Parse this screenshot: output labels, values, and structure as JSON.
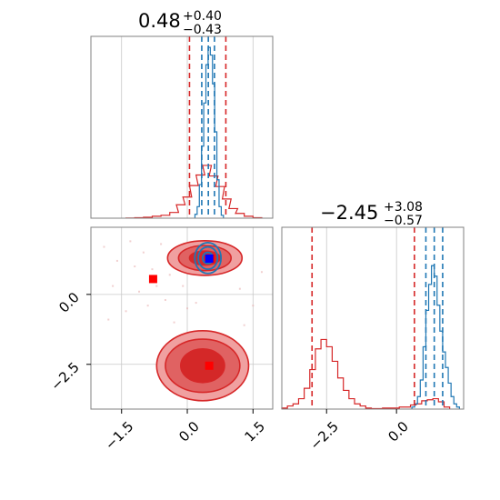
{
  "colors": {
    "red": "#d62728",
    "blue": "#1f77b4",
    "red_fill_light": "#f0a0a0",
    "red_fill_mid": "#e06262",
    "red_fill_dark": "#d42828",
    "point_red": "#ff0000",
    "point_blue": "#0000ff",
    "grid": "#c8c8c8",
    "frame": "#808080"
  },
  "chart_data": [
    {
      "type": "histogram",
      "panel": "marginal-x",
      "title": {
        "value": "0.48",
        "plus": "+0.40",
        "minus": "−0.43"
      },
      "xlim": [
        -2.2,
        1.95
      ],
      "grid": true,
      "quantile_lines": {
        "red": [
          0.05,
          0.88
        ],
        "blue": [
          0.33,
          0.48,
          0.62
        ]
      },
      "series": [
        {
          "color": "red",
          "x": [
            -1.3,
            -1.1,
            -0.9,
            -0.7,
            -0.5,
            -0.3,
            -0.15,
            0.0,
            0.15,
            0.3,
            0.45,
            0.6,
            0.75,
            0.9,
            1.05,
            1.2,
            1.4,
            1.6
          ],
          "y": [
            0.2,
            0.5,
            1,
            2,
            3,
            6,
            14,
            22,
            34,
            45,
            55,
            44,
            33,
            20,
            10,
            5,
            2,
            0.5
          ]
        },
        {
          "color": "blue",
          "x": [
            0.2,
            0.25,
            0.3,
            0.35,
            0.4,
            0.45,
            0.5,
            0.55,
            0.6,
            0.65,
            0.7,
            0.75,
            0.8
          ],
          "y": [
            4,
            12,
            35,
            75,
            120,
            160,
            178,
            170,
            140,
            90,
            40,
            12,
            3
          ]
        }
      ]
    },
    {
      "type": "scatter",
      "panel": "joint",
      "xlim": [
        -2.2,
        1.95
      ],
      "ylim": [
        -4.1,
        2.4
      ],
      "xticks": [
        "−1.5",
        "0.0",
        "1.5"
      ],
      "yticks": [
        "0.0",
        "−2.5"
      ],
      "grid": true,
      "markers": [
        {
          "color": "red",
          "shape": "square",
          "x": -0.78,
          "y": 0.55
        },
        {
          "color": "red",
          "shape": "square",
          "x": 0.53,
          "y": 1.28
        },
        {
          "color": "red",
          "shape": "square",
          "x": 0.5,
          "y": -2.55
        },
        {
          "color": "blue",
          "shape": "square",
          "x": 0.5,
          "y": 1.28
        }
      ],
      "red_modes": [
        {
          "cx": 0.4,
          "cy": 1.3,
          "levels_rx": [
            0.85,
            0.6,
            0.35
          ],
          "levels_ry": [
            0.62,
            0.45,
            0.25
          ]
        },
        {
          "cx": 0.35,
          "cy": -2.55,
          "levels_rx": [
            1.05,
            0.85,
            0.5
          ],
          "levels_ry": [
            1.25,
            0.95,
            0.6
          ]
        }
      ],
      "blue_mode": {
        "cx": 0.47,
        "cy": 1.3,
        "levels_rx": [
          0.3,
          0.22,
          0.12
        ],
        "levels_ry": [
          0.55,
          0.4,
          0.2
        ]
      }
    },
    {
      "type": "histogram",
      "panel": "marginal-y",
      "title": {
        "value": "−2.45",
        "plus": "+3.08",
        "minus": "−0.57"
      },
      "xlim": [
        -4.1,
        2.4
      ],
      "xticks": [
        "−2.5",
        "0.0"
      ],
      "grid": true,
      "quantile_lines": {
        "red": [
          -3.02,
          0.64
        ],
        "blue": [
          1.05,
          1.35,
          1.65
        ]
      },
      "series": [
        {
          "color": "red",
          "x": [
            -4.0,
            -3.8,
            -3.6,
            -3.4,
            -3.2,
            -3.0,
            -2.8,
            -2.6,
            -2.4,
            -2.2,
            -2.0,
            -1.8,
            -1.6,
            -1.4,
            -1.2,
            -1.0,
            -0.8,
            -0.6,
            -0.4,
            -0.2,
            0.0,
            0.2,
            0.4,
            0.6,
            0.8,
            1.0,
            1.2,
            1.4,
            1.6,
            1.8
          ],
          "y": [
            1,
            3,
            5,
            10,
            20,
            38,
            58,
            67,
            60,
            46,
            30,
            18,
            10,
            5,
            3,
            1,
            0.5,
            0.5,
            1,
            1,
            1,
            2,
            2,
            4,
            5,
            8,
            9,
            10,
            7,
            2
          ]
        },
        {
          "color": "blue",
          "x": [
            0.6,
            0.7,
            0.8,
            0.9,
            1.0,
            1.1,
            1.2,
            1.3,
            1.4,
            1.5,
            1.6,
            1.7,
            1.8,
            1.9,
            2.0,
            2.1,
            2.2
          ],
          "y": [
            2,
            5,
            12,
            28,
            60,
            95,
            120,
            138,
            128,
            100,
            75,
            55,
            40,
            25,
            12,
            5,
            2
          ]
        }
      ]
    }
  ]
}
